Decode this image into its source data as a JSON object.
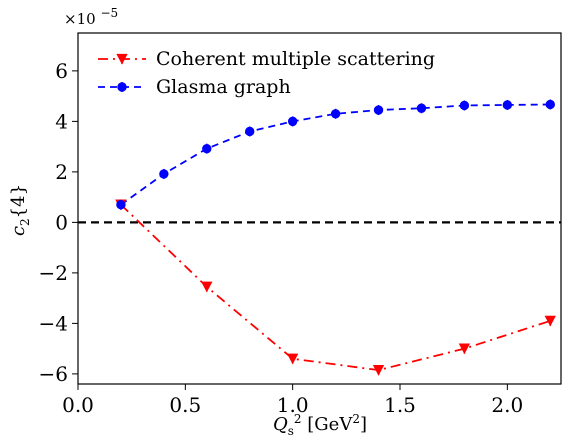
{
  "chart_data": {
    "type": "line",
    "multiplier": {
      "prefix": "×10",
      "exponent": "−5"
    },
    "xlabel": "Q_s^2 [GeV^2]",
    "ylabel": "c_2{4}",
    "xlim": [
      0.0,
      2.25
    ],
    "ylim": [
      -6.4,
      7.5
    ],
    "x_ticks": [
      0.0,
      0.5,
      1.0,
      1.5,
      2.0
    ],
    "x_tick_labels": [
      "0.0",
      "0.5",
      "1.0",
      "1.5",
      "2.0"
    ],
    "y_ticks": [
      -6,
      -4,
      -2,
      0,
      2,
      4,
      6
    ],
    "y_tick_labels": [
      "−6",
      "−4",
      "−2",
      "0",
      "2",
      "4",
      "6"
    ],
    "reference_line": 0,
    "legend_placement": "top-left",
    "series": [
      {
        "name": "Coherent multiple scattering",
        "color": "#ff0000",
        "marker": "triangle-down",
        "linestyle": "dash-dot",
        "x": [
          0.2,
          0.6,
          1.0,
          1.4,
          1.8,
          2.2
        ],
        "values": [
          0.7,
          -2.55,
          -5.4,
          -5.85,
          -5.0,
          -3.9
        ]
      },
      {
        "name": "Glasma graph",
        "color": "#0000ff",
        "marker": "circle",
        "linestyle": "dashed",
        "x": [
          0.2,
          0.4,
          0.6,
          0.8,
          1.0,
          1.2,
          1.4,
          1.6,
          1.8,
          2.0,
          2.2
        ],
        "values": [
          0.7,
          1.92,
          2.92,
          3.6,
          4.0,
          4.3,
          4.45,
          4.52,
          4.63,
          4.65,
          4.67
        ]
      }
    ]
  }
}
